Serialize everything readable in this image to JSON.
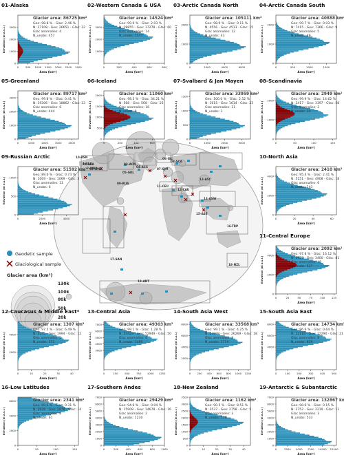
{
  "chart_data": {
    "type": "bar",
    "description_note": "",
    "colors": {
      "geodetic": "#2a8fb8",
      "glaciological": "#8b0000",
      "land": "#c8c8c8",
      "ocean": "#ffffff",
      "axis": "#333333",
      "region_text": "#333333"
    },
    "legend": {
      "geodetic_label": "Geodetic sample",
      "glaciological_label": "Glaciological sample",
      "area_title": "Glacier area (km²)",
      "area_levels": [
        "130k",
        "100k",
        "80k",
        "50k",
        "20k"
      ]
    },
    "map_region_labels": [
      "10-ASN",
      "09-RUA",
      "01-ALA",
      "02-WNA",
      "03-ACN",
      "04-ACS",
      "05-GRL",
      "06-ISL",
      "07-SJM",
      "08-SCA",
      "11-CEU",
      "12-CAU",
      "13-ASC",
      "14-ASW",
      "15-ASE",
      "16-TRP",
      "17-SAN",
      "18-NZL",
      "19-ANT",
      "2-WNA",
      "1-ALA"
    ],
    "panels": [
      {
        "title": "01-Alaska",
        "area_label": "Glacier area: 86725 km²",
        "geo": "Geo: 98.8 % - Glac: 2.46 %",
        "n": "N: 27108 - Geo: 26651 - Glac: 22",
        "anom": "Glac anomalies: 4",
        "nunobs": "N_unobs: 457",
        "ylabel": "Elevation (m a.s.l.)",
        "xlabel": "Area (km²)",
        "yticks": [
          "0",
          "1000",
          "2000",
          "3000"
        ],
        "xticks": [
          "0",
          "500",
          "1000",
          "1500",
          "2000",
          "2500",
          "3000"
        ],
        "ymax": 4000,
        "xmax": 3000,
        "peak_y": 1000,
        "peak_x": 2600,
        "glac_peak": 260
      },
      {
        "title": "02-Western Canada & USA",
        "area_label": "Glacier area: 14524 km²",
        "geo": "Geo: 99.0 % - Glac: 2.03 %",
        "n": "N: 18855 - Geo: 17278 - Glac: 60",
        "anom": "Glac anomalies: 14",
        "nunobs": "N_unobs: 1577",
        "ylabel": "Elevation (m a.s.l.)",
        "xlabel": "Area (km²)",
        "yticks": [
          "1000",
          "2000",
          "3000"
        ],
        "xticks": [
          "0",
          "200",
          "400",
          "600",
          "800"
        ],
        "ymax": 4000,
        "xmax": 800,
        "peak_y": 2200,
        "peak_x": 650,
        "glac_peak": 0
      },
      {
        "title": "03-Arctic Canada North",
        "area_label": "Glacier area: 105111 km²",
        "geo": "Geo: 98.9 % - Glac: 0.11 %",
        "n": "N: 4556 - Geo: 4513 - Glac: 15",
        "anom": "Glac anomalies: 12",
        "nunobs": "N_unobs: 43",
        "ylabel": "Elevation (m a.s.l.)",
        "xlabel": "Area (km²)",
        "yticks": [
          "0",
          "1000",
          "2000"
        ],
        "xticks": [
          "0",
          "2000",
          "4000",
          "6000"
        ],
        "ymax": 2500,
        "xmax": 7000,
        "peak_y": 900,
        "peak_x": 6500,
        "glac_peak": 0
      },
      {
        "title": "04-Arctic Canada South",
        "area_label": "Glacier area: 40888 km²",
        "geo": "Geo: 99.7 % - Glac: 0.03 %",
        "n": "N: 7415 - Geo: 7366 - Glac: 9",
        "anom": "Glac anomalies: 5",
        "nunobs": "N_unobs: 49",
        "ylabel": "Elevation (m a.s.l.)",
        "xlabel": "Area (km²)",
        "yticks": [
          "0",
          "1000",
          "2000"
        ],
        "xticks": [
          "0",
          "500",
          "1000",
          "1500"
        ],
        "ymax": 2500,
        "xmax": 1800,
        "peak_y": 1100,
        "peak_x": 1600,
        "glac_peak": 0
      },
      {
        "title": "05-Greenland",
        "area_label": "Glacier area: 89717 km²",
        "geo": "Geo: 99.8 % - Glac: 0.41 %",
        "n": "N: 19306 - Geo: 18862 - Glac: 13",
        "anom": "Glac anomalies: 6",
        "nunobs": "N_unobs: 444",
        "ylabel": "Elevation (m a.s.l.)",
        "xlabel": "Area (km²)",
        "yticks": [
          "0",
          "1000",
          "2000",
          "3000"
        ],
        "xticks": [
          "0",
          "1000",
          "2000",
          "3000",
          "4000"
        ],
        "ymax": 3500,
        "xmax": 4500,
        "peak_y": 1000,
        "peak_x": 4000,
        "glac_peak": 0
      },
      {
        "title": "06-Iceland",
        "area_label": "Glacier area: 11060 km²",
        "geo": "Geo: 98.5 % - Glac: 34.21 %",
        "n": "N: 568 - Geo: 568 - Glac: 16",
        "anom": "Glac anomalies: 16",
        "nunobs": "N_unobs: 0",
        "ylabel": "Elevation (m a.s.l.)",
        "xlabel": "Area (km²)",
        "yticks": [
          "0",
          "500",
          "1000",
          "1500",
          "2000"
        ],
        "xticks": [
          "0",
          "200",
          "400",
          "600"
        ],
        "ymax": 2200,
        "xmax": 750,
        "peak_y": 1000,
        "peak_x": 620,
        "glac_peak": 330
      },
      {
        "title": "07-Svalbard & Jan Mayen",
        "area_label": "Glacier area: 33959 km²",
        "geo": "Geo: 100.0 % - Glac: 2.52 %",
        "n": "N: 1615 - Geo: 1614 - Glac: 23",
        "anom": "Glac anomalies: 11",
        "nunobs": "N_unobs: 1",
        "ylabel": "Elevation (m a.s.l.)",
        "xlabel": "Area (km²)",
        "yticks": [
          "0",
          "500",
          "1000",
          "1500"
        ],
        "xticks": [
          "0",
          "1000",
          "2000",
          "3000"
        ],
        "ymax": 1700,
        "xmax": 3500,
        "peak_y": 500,
        "peak_x": 3200,
        "glac_peak": 0
      },
      {
        "title": "08-Scandinavia",
        "area_label": "Glacier area: 2949 km²",
        "geo": "Geo: 99.9 % - Glac: 14.62 %",
        "n": "N: 3417 - Geo: 3397 - Glac: 58",
        "anom": "Glac anomalies: 3",
        "nunobs": "N_unobs: 20",
        "ylabel": "Elevation (m a.s.l.)",
        "xlabel": "Area (km²)",
        "yticks": [
          "0",
          "1000",
          "2000"
        ],
        "xticks": [
          "0",
          "50",
          "100",
          "150"
        ],
        "ymax": 2500,
        "xmax": 160,
        "peak_y": 1300,
        "peak_x": 140,
        "glac_peak": 50
      },
      {
        "title": "09-Russian Arctic",
        "area_label": "Glacier area: 51592 km²",
        "geo": "Geo: 89.6 % - Glac: 0.73 %",
        "n": "N: 1069 - Geo: 1069 - Glac: 3",
        "anom": "Glac anomalies: 11",
        "nunobs": "N_unobs: 0",
        "ylabel": "Elevation (m a.s.l.)",
        "xlabel": "Area (km²)",
        "yticks": [
          "0",
          "500",
          "1000"
        ],
        "xticks": [
          "0",
          "2000",
          "4000"
        ],
        "ymax": 1300,
        "xmax": 5000,
        "peak_y": 300,
        "peak_x": 4500,
        "glac_peak": 0
      },
      {
        "title": "10-North Asia",
        "area_label": "Glacier area: 2410 km²",
        "geo": "Geo: 95.4 % - Glac: 2.41 %",
        "n": "N: 5151 - Geo: 4908 - Glac: 18",
        "anom": "Glac anomalies: 6",
        "nunobs": "N_unobs: 243",
        "ylabel": "Elevation (m a.s.l.)",
        "xlabel": "Area (km²)",
        "yticks": [
          "0",
          "2000",
          "4000"
        ],
        "xticks": [
          "0",
          "20",
          "40",
          "60"
        ],
        "ymax": 5000,
        "xmax": 65,
        "peak_y": 2200,
        "peak_x": 55,
        "glac_peak": 0
      },
      {
        "title": "11-Central Europe",
        "area_label": "Glacier area: 2092 km²",
        "geo": "Geo: 97.8 % - Glac: 16.12 %",
        "n": "N: 3927 - Geo: 3400 - Glac: 81",
        "anom": "Glac anomalies: 48",
        "nunobs": "N_unobs: 527",
        "ylabel": "Elevation (m a.s.l.)",
        "xlabel": "Area (km²)",
        "yticks": [
          "0",
          "2000",
          "4000"
        ],
        "xticks": [
          "0",
          "25",
          "50",
          "75",
          "100",
          "125"
        ],
        "ymax": 5000,
        "xmax": 130,
        "peak_y": 3000,
        "peak_x": 115,
        "glac_peak": 45
      },
      {
        "title": "12-Caucasus & Middle East*",
        "area_label": "Glacier area: 1307 km²",
        "geo": "Geo: 97.5 % - Glac: 6.49 %",
        "n": "N: 2545 - Geo: 1994 - Glac: 12",
        "anom": "Glac anomalies: 2",
        "nunobs": "N_unobs: 551",
        "ylabel": "Elevation (m a.s.l.)",
        "xlabel": "Area (km²)",
        "yticks": [
          "2000",
          "4000"
        ],
        "xticks": [
          "0",
          "10",
          "20",
          "30",
          "40"
        ],
        "ymax": 5500,
        "xmax": 45,
        "peak_y": 3400,
        "peak_x": 38,
        "glac_peak": 0
      },
      {
        "title": "13-Central Asia",
        "area_label": "Glacier area: 49303 km²",
        "geo": "Geo: 99.1 % - Glac: 1.28 %",
        "n": "N: 54429 - Geo: 52949 - Glac: 50",
        "anom": "Glac anomalies: 6",
        "nunobs": "N_unobs: 1480",
        "ylabel": "Elevation (m a.s.l.)",
        "xlabel": "Area (km²)",
        "yticks": [
          "3000",
          "4000",
          "5000",
          "6000",
          "7000"
        ],
        "xticks": [
          "0",
          "250",
          "500",
          "750",
          "1000",
          "1250"
        ],
        "ymax": 7500,
        "xmax": 1300,
        "peak_y": 4800,
        "peak_x": 1150,
        "glac_peak": 0
      },
      {
        "title": "14-South Asia West",
        "area_label": "Glacier area: 33568 km²",
        "geo": "Geo: 99.1 % - Glac: 4.25 %",
        "n": "N: 27988 - Geo: 26269 - Glac: 18",
        "anom": "Glac anomalies: 3",
        "nunobs": "N_unobs: 1719",
        "ylabel": "Elevation (m a.s.l.)",
        "xlabel": "Area (km²)",
        "yticks": [
          "2000",
          "4000",
          "6000",
          "8000"
        ],
        "xticks": [
          "0",
          "200",
          "400",
          "600",
          "800",
          "1000",
          "1200"
        ],
        "ymax": 8500,
        "xmax": 1250,
        "peak_y": 5000,
        "peak_x": 1100,
        "glac_peak": 0
      },
      {
        "title": "15-South Asia East",
        "area_label": "Glacier area: 14734 km²",
        "geo": "Geo: 96.6 % - Glac: 0.64 %",
        "n": "N: 13119 - Geo: 12290 - Glac: 21",
        "anom": "Glac anomalies: 8",
        "nunobs": "N_unobs: 829",
        "ylabel": "Elevation (m a.s.l.)",
        "xlabel": "Area (km²)",
        "yticks": [
          "4000",
          "6000",
          "8000"
        ],
        "xticks": [
          "0",
          "100",
          "200",
          "300",
          "400",
          "500"
        ],
        "ymax": 8500,
        "xmax": 520,
        "peak_y": 5500,
        "peak_x": 480,
        "glac_peak": 0
      },
      {
        "title": "16-Low Latitudes",
        "area_label": "Glacier area: 2341 km²",
        "geo": "Geo: 99.6 % - Glac: 0.31 %",
        "n": "N: 2939 - Geo: 2878 - Glac: 14",
        "anom": "Glac anomalies: 6",
        "nunobs": "N_unobs: 61",
        "ylabel": "Elevation (m a.s.l.)",
        "xlabel": "Area (km²)",
        "yticks": [
          "0",
          "2000",
          "4000",
          "6000"
        ],
        "xticks": [
          "0",
          "50",
          "100",
          "150"
        ],
        "ymax": 6500,
        "xmax": 160,
        "peak_y": 5000,
        "peak_x": 140,
        "glac_peak": 0
      },
      {
        "title": "17-Southern Andes",
        "area_label": "Glacier area: 29429 km²",
        "geo": "Geo: 94.6 % - Glac: 0.04 %",
        "n": "N: 15908 - Geo: 14678 - Glac: 16",
        "anom": "Glac anomalies: 2",
        "nunobs": "N_unobs: 1230",
        "ylabel": "Elevation (m a.s.l.)",
        "xlabel": "Area (km²)",
        "yticks": [
          "0",
          "1000",
          "2000",
          "3000",
          "4000",
          "5000",
          "6000",
          "7000"
        ],
        "xticks": [
          "0",
          "200",
          "400",
          "600",
          "800",
          "1000"
        ],
        "ymax": 7000,
        "xmax": 1000,
        "peak_y": 1200,
        "peak_x": 950,
        "glac_peak": 0
      },
      {
        "title": "18-New Zealand",
        "area_label": "Glacier area: 1162 km²",
        "geo": "Geo: 90.5 % - Glac: 8.51 %",
        "n": "N: 3537 - Geo: 2758 - Glac: 5",
        "anom": "Glac anomalies: 3",
        "nunobs": "N_unobs: 779",
        "ylabel": "Elevation (m a.s.l.)",
        "xlabel": "Area (km²)",
        "yticks": [
          "0",
          "500",
          "1000",
          "1500",
          "2000",
          "2500",
          "3000",
          "3500"
        ],
        "xticks": [
          "0",
          "10",
          "20",
          "30",
          "40"
        ],
        "ymax": 3500,
        "xmax": 45,
        "peak_y": 1700,
        "peak_x": 40,
        "glac_peak": 6
      },
      {
        "title": "19-Antarctic & Subantarctic",
        "area_label": "Glacier area: 132867 km²",
        "geo": "Geo: 90.6 % - Glac: 0.15 %",
        "n": "N: 2752 - Geo: 2219 - Glac: 11",
        "anom": "Glac anomalies: 3",
        "nunobs": "N_unobs: 533",
        "ylabel": "Elevation (m a.s.l.)",
        "xlabel": "Area (km²)",
        "yticks": [
          "0",
          "1000",
          "2000",
          "3000",
          "4000",
          "5000",
          "6000",
          "7000"
        ],
        "xticks": [
          "0",
          "2500",
          "5000",
          "7500",
          "10000",
          "12500"
        ],
        "ymax": 7000,
        "xmax": 13000,
        "peak_y": 600,
        "peak_x": 12000,
        "glac_peak": 0
      }
    ]
  }
}
